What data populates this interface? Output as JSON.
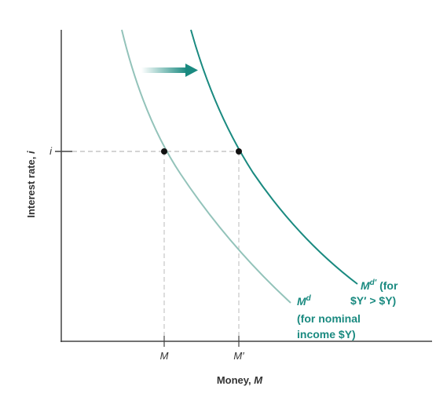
{
  "y_axis": {
    "label": "Interest rate,",
    "variable": "i",
    "tick": "i"
  },
  "x_axis": {
    "label": "Money,",
    "variable": "M",
    "ticks": [
      "M",
      "M′"
    ]
  },
  "curves": [
    {
      "symbol": "M",
      "superscript": "d",
      "note_lines": [
        "(for nominal",
        "income $Y)"
      ]
    },
    {
      "symbol": "M",
      "superscript": "d′",
      "note_lines": [
        " (for",
        "$Y′ > $Y)"
      ]
    }
  ]
}
